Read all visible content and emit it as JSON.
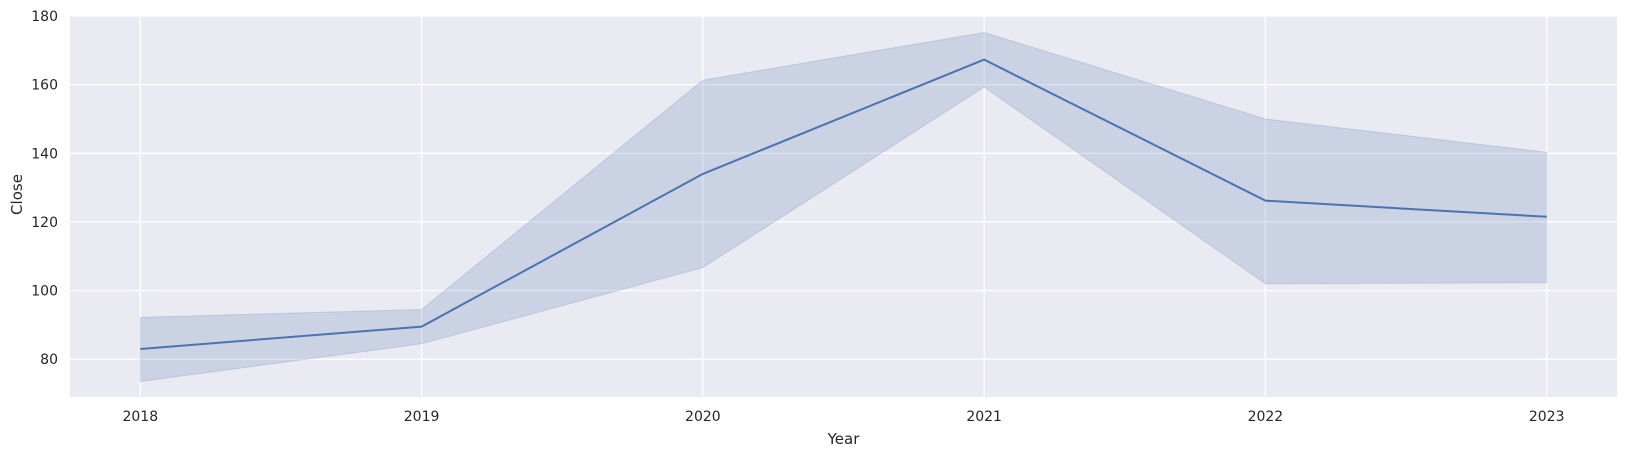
{
  "chart_data": {
    "type": "line",
    "title": "",
    "xlabel": "Year",
    "ylabel": "Close",
    "x": [
      2018,
      2019,
      2020,
      2021,
      2022,
      2023
    ],
    "x_tick_labels": [
      "2018",
      "2019",
      "2020",
      "2021",
      "2022",
      "2023"
    ],
    "xlim": [
      2017.75,
      2023.25
    ],
    "ylim": [
      69,
      180
    ],
    "y_ticks": [
      80,
      100,
      120,
      140,
      160,
      180
    ],
    "y_tick_labels": [
      "80",
      "100",
      "120",
      "140",
      "160",
      "180"
    ],
    "grid": true,
    "series": [
      {
        "values": [
          83.0,
          89.5,
          134.0,
          167.3,
          126.2,
          121.5
        ],
        "ci_lower": [
          73.5,
          84.5,
          106.7,
          159.3,
          102.0,
          102.3
        ],
        "ci_upper": [
          92.2,
          94.5,
          161.3,
          175.2,
          150.0,
          140.3
        ],
        "color": "#4c72b0"
      }
    ],
    "background_color": "#eaeaf2",
    "grid_color": "#ffffff"
  }
}
